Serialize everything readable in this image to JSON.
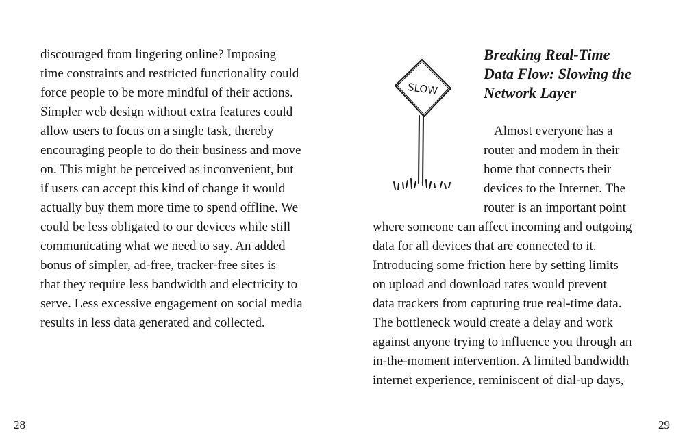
{
  "left_page": {
    "lines": [
      "discouraged from lingering online? Imposing",
      "time constraints and restricted functionality could",
      "force people to be more mindful of their actions.",
      "Simpler web design without extra features could",
      "allow users to focus on a single task, thereby",
      "encouraging people to do their business and move",
      "on. This might be perceived as inconvenient, but",
      "if users can accept this kind of change it would",
      "actually buy them more time to spend offline. We",
      "could be less obligated to our devices while still",
      "communicating what we need to say. An added",
      "bonus of simpler, ad-free, tracker-free sites is",
      "that they require less bandwidth and electricity to",
      "serve. Less excessive engagement on social media",
      "results in less data generated and collected."
    ],
    "page_number": "28"
  },
  "right_page": {
    "heading_lines": [
      "Breaking Real-Time",
      "Data Flow: Slowing the",
      "Network Layer"
    ],
    "illustration": {
      "icon": "slow-sign-icon",
      "sign_text": "SLOW"
    },
    "lines": [
      "Almost everyone has a",
      "router and modem in their",
      "home that connects their",
      "devices to the Internet. The",
      "router is an important point",
      "where someone can affect incoming and outgoing",
      "data for all devices that are connected to it.",
      "Introducing some friction here by setting limits",
      "on upload and download rates would prevent",
      "data trackers from capturing true real-time data.",
      "The bottleneck would create a delay and work",
      "against anyone trying to influence you through an",
      "in-the-moment intervention. A limited bandwidth",
      "internet experience, reminiscent of dial-up days,"
    ],
    "page_number": "29"
  }
}
